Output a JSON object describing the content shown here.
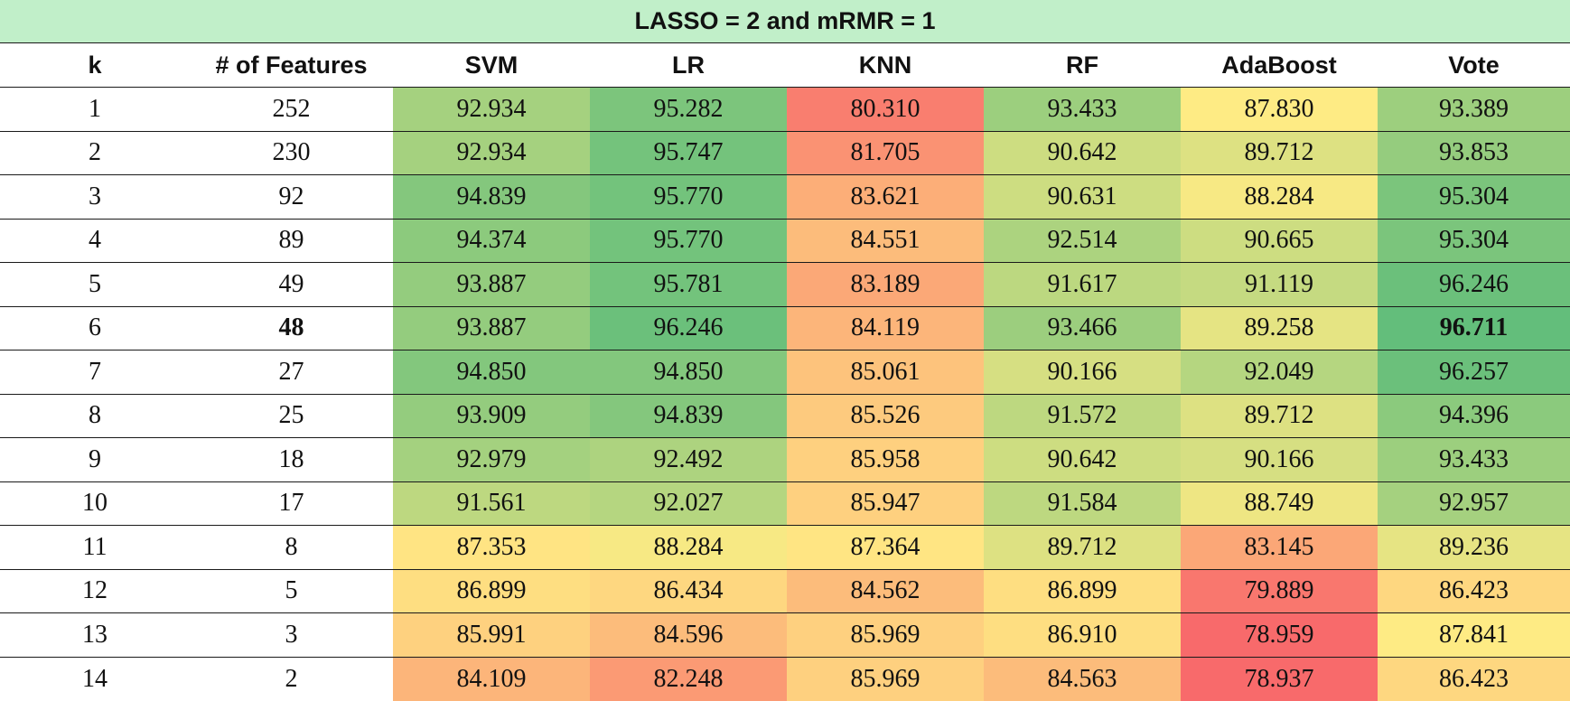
{
  "chart_data": {
    "type": "table",
    "title": "LASSO = 2 and mRMR = 1",
    "columns": [
      "k",
      "# of Features",
      "SVM",
      "LR",
      "KNN",
      "RF",
      "AdaBoost",
      "Vote"
    ],
    "rows": [
      {
        "k": "1",
        "features": "252",
        "values": [
          "92.934",
          "95.282",
          "80.310",
          "93.433",
          "87.830",
          "93.389"
        ]
      },
      {
        "k": "2",
        "features": "230",
        "values": [
          "92.934",
          "95.747",
          "81.705",
          "90.642",
          "89.712",
          "93.853"
        ]
      },
      {
        "k": "3",
        "features": "92",
        "values": [
          "94.839",
          "95.770",
          "83.621",
          "90.631",
          "88.284",
          "95.304"
        ]
      },
      {
        "k": "4",
        "features": "89",
        "values": [
          "94.374",
          "95.770",
          "84.551",
          "92.514",
          "90.665",
          "95.304"
        ]
      },
      {
        "k": "5",
        "features": "49",
        "values": [
          "93.887",
          "95.781",
          "83.189",
          "91.617",
          "91.119",
          "96.246"
        ]
      },
      {
        "k": "6",
        "features": "48",
        "values": [
          "93.887",
          "96.246",
          "84.119",
          "93.466",
          "89.258",
          "96.711"
        ]
      },
      {
        "k": "7",
        "features": "27",
        "values": [
          "94.850",
          "94.850",
          "85.061",
          "90.166",
          "92.049",
          "96.257"
        ]
      },
      {
        "k": "8",
        "features": "25",
        "values": [
          "93.909",
          "94.839",
          "85.526",
          "91.572",
          "89.712",
          "94.396"
        ]
      },
      {
        "k": "9",
        "features": "18",
        "values": [
          "92.979",
          "92.492",
          "85.958",
          "90.642",
          "90.166",
          "93.433"
        ]
      },
      {
        "k": "10",
        "features": "17",
        "values": [
          "91.561",
          "92.027",
          "85.947",
          "91.584",
          "88.749",
          "92.957"
        ]
      },
      {
        "k": "11",
        "features": "8",
        "values": [
          "87.353",
          "88.284",
          "87.364",
          "89.712",
          "83.145",
          "89.236"
        ]
      },
      {
        "k": "12",
        "features": "5",
        "values": [
          "86.899",
          "86.434",
          "84.562",
          "86.899",
          "79.889",
          "86.423"
        ]
      },
      {
        "k": "13",
        "features": "3",
        "values": [
          "85.991",
          "84.596",
          "85.969",
          "86.910",
          "78.959",
          "87.841"
        ]
      },
      {
        "k": "14",
        "features": "2",
        "values": [
          "84.109",
          "82.248",
          "85.969",
          "84.563",
          "78.937",
          "86.423"
        ]
      }
    ],
    "highlight": {
      "row_k": "6",
      "bold_columns": [
        "# of Features",
        "Vote"
      ]
    }
  },
  "colors": {
    "title_bg": "#c1efc9",
    "scale_low": "#f8696b",
    "scale_mid": "#ffeb84",
    "scale_high": "#63be7b",
    "scale_min": 78.9,
    "scale_max": 96.7
  }
}
